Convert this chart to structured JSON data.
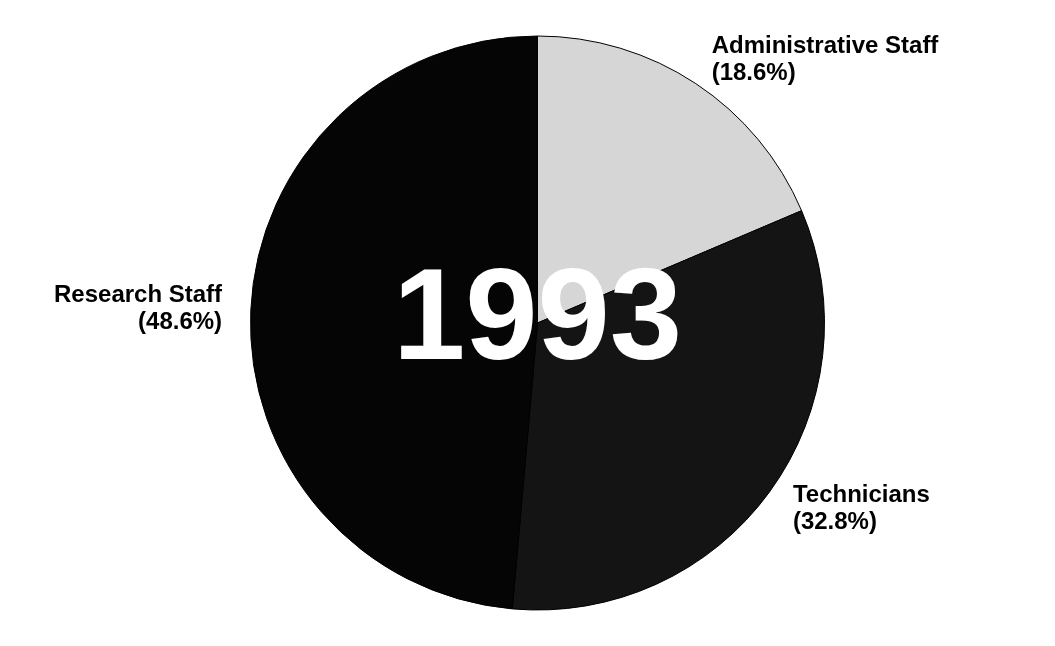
{
  "chart_data": {
    "type": "pie",
    "title": "1993",
    "categories": [
      "Administrative Staff",
      "Technicians",
      "Research Staff"
    ],
    "values": [
      18.6,
      32.8,
      48.6
    ],
    "value_labels": [
      "(18.6%)",
      "(32.8%)",
      "(48.6%)"
    ],
    "colors": [
      "#d6d6d6",
      "#141414",
      "#050505"
    ],
    "legend": false
  }
}
